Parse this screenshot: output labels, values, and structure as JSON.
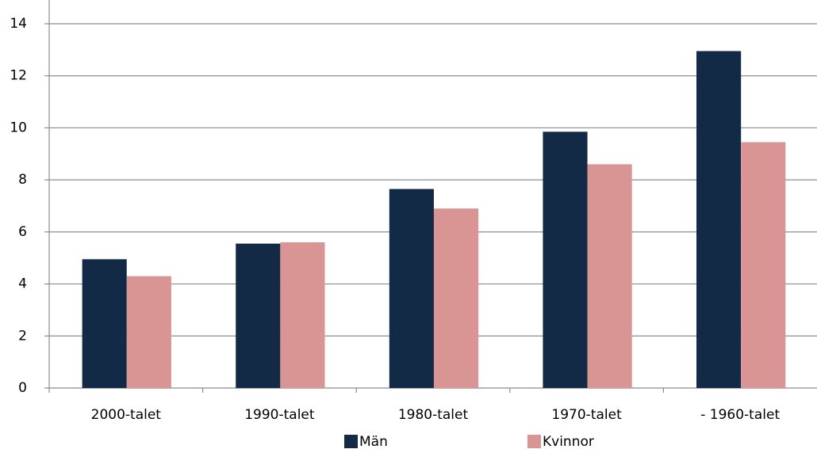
{
  "chart_data": {
    "type": "bar",
    "categories": [
      "2000-talet",
      "1990-talet",
      "1980-talet",
      "1970-talet",
      "- 1960-talet"
    ],
    "series": [
      {
        "name": "Män",
        "color": "#132a47",
        "values": [
          4.95,
          5.55,
          7.65,
          9.85,
          12.95
        ]
      },
      {
        "name": "Kvinnor",
        "color": "#d99594",
        "values": [
          4.3,
          5.6,
          6.9,
          8.6,
          9.45
        ]
      }
    ],
    "ylim": [
      0,
      14
    ],
    "yticks": [
      0,
      2,
      4,
      6,
      8,
      10,
      12,
      14
    ],
    "grid": true,
    "legend": "bottom"
  }
}
